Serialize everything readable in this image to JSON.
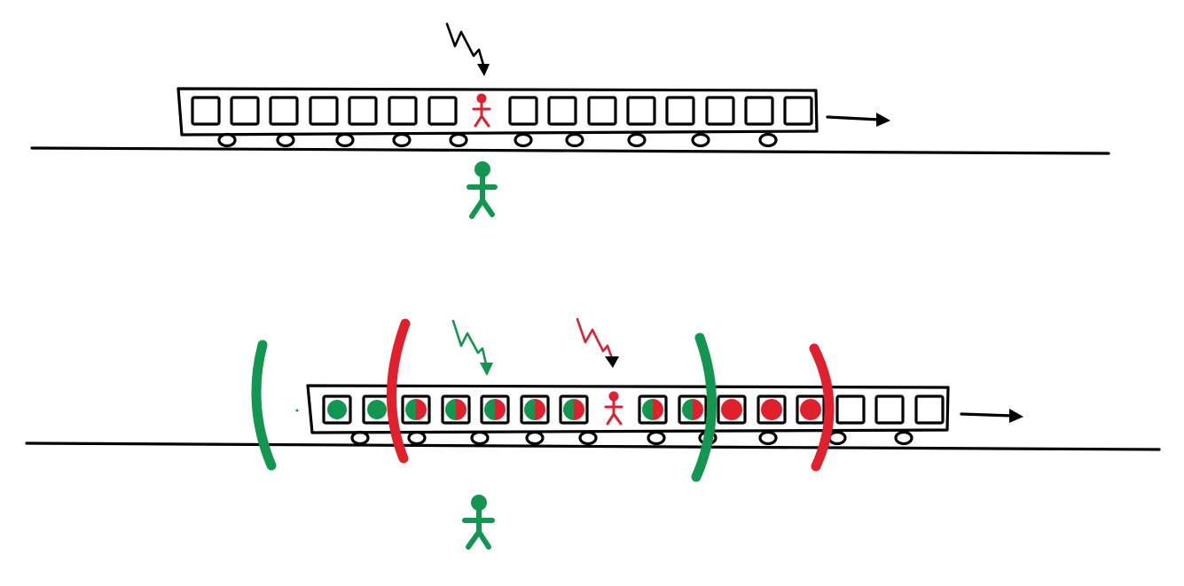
{
  "colors": {
    "ink": "#000000",
    "observer_on_ground": "#129650",
    "observer_on_train": "#e0202d"
  },
  "scenes": [
    {
      "id": "before-flashes",
      "train_windows": 16,
      "train_wheels": 10,
      "moving_direction": "right",
      "lightning_strikes": [
        {
          "color": "ink"
        }
      ],
      "flash_fronts": []
    },
    {
      "id": "after-flashes",
      "train_windows": 16,
      "train_wheels": 10,
      "moving_direction": "right",
      "lightning_strikes": [
        {
          "color": "observer_on_ground"
        },
        {
          "color": "observer_on_train"
        }
      ],
      "flash_fronts": [
        {
          "color": "observer_on_ground"
        },
        {
          "color": "observer_on_train"
        }
      ]
    }
  ]
}
